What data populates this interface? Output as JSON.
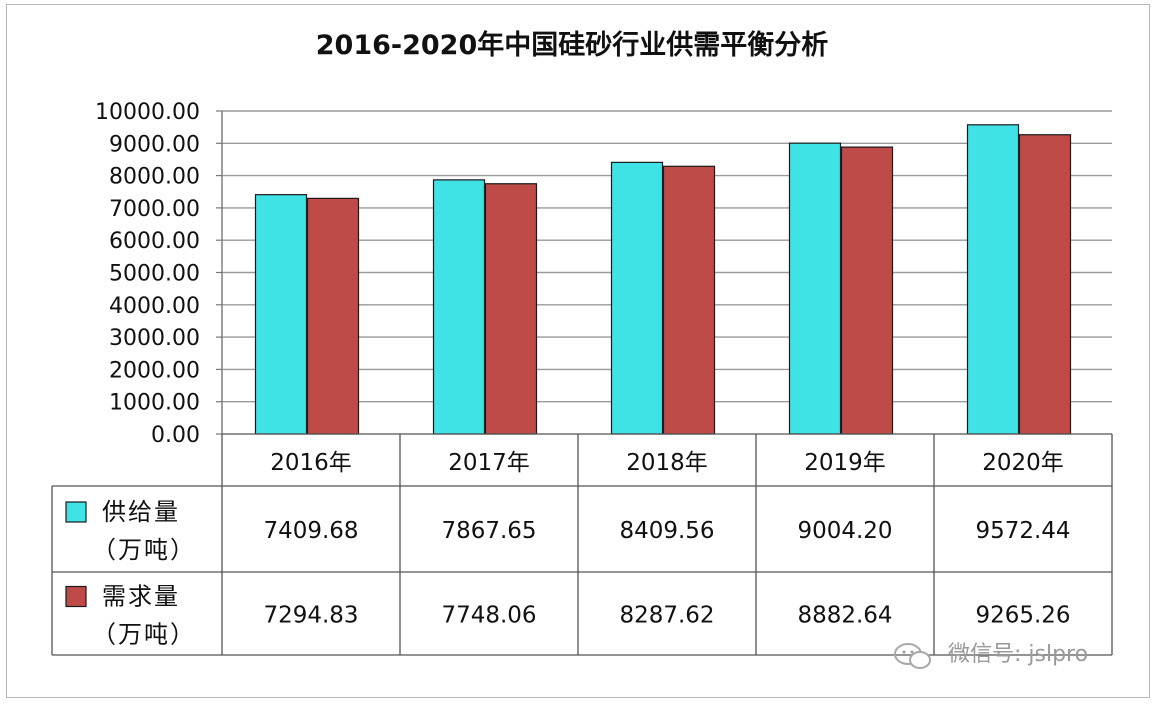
{
  "chart_data": {
    "type": "bar",
    "title": "2016-2020年中国硅砂行业供需平衡分析",
    "categories": [
      "2016年",
      "2017年",
      "2018年",
      "2019年",
      "2020年"
    ],
    "series": [
      {
        "name": "供给量",
        "unit": "（万吨）",
        "color": "#3fe3e6",
        "values": [
          7409.68,
          7867.65,
          8409.56,
          9004.2,
          9572.44
        ],
        "table_values": [
          "7409.68",
          "7867.65",
          "8409.56",
          "9004.20",
          "9572.44"
        ]
      },
      {
        "name": "需求量",
        "unit": "（万吨）",
        "color": "#be4b48",
        "values": [
          7294.83,
          7748.06,
          8287.62,
          8882.64,
          9265.26
        ],
        "table_values": [
          "7294.83",
          "7748.06",
          "8287.62",
          "8882.64",
          "9265.26"
        ]
      }
    ],
    "ylim": [
      0,
      10000
    ],
    "yticks": [
      "0.00",
      "1000.00",
      "2000.00",
      "3000.00",
      "4000.00",
      "5000.00",
      "6000.00",
      "7000.00",
      "8000.00",
      "9000.00",
      "10000.00"
    ],
    "grid": true,
    "legend": "data-table"
  },
  "watermark": "微信号: jslpro"
}
